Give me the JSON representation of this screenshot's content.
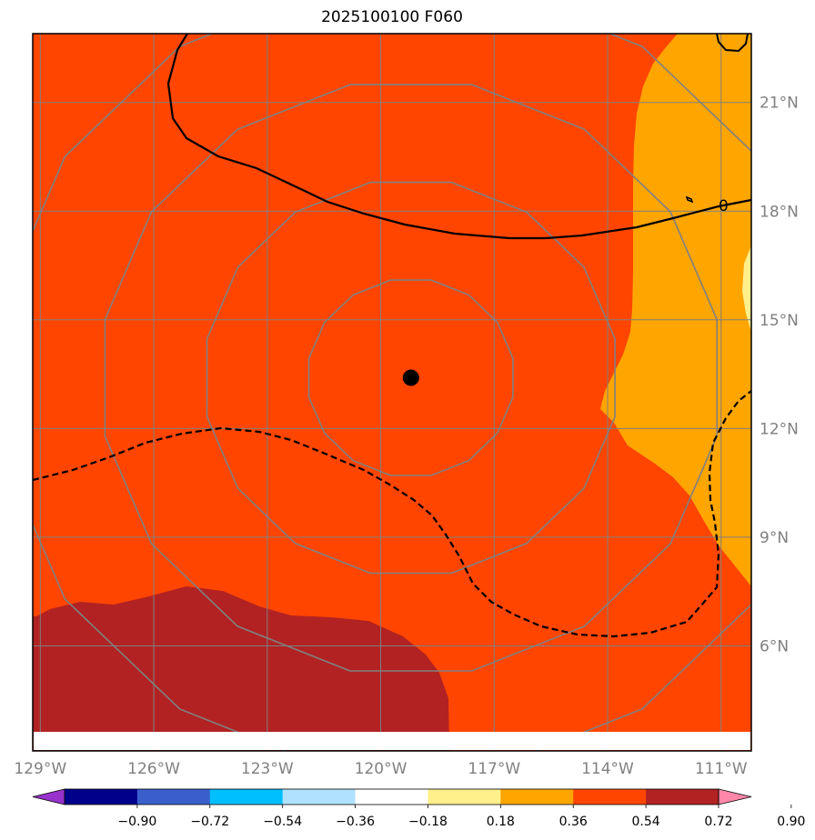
{
  "title": "2025100100 F060",
  "colors": {
    "base": "#ff4500",
    "upper_bin": "#b22222",
    "mid_bin": "#ffa500",
    "low_bin": "#fff08c",
    "grid": "#808080",
    "contour": "#000000"
  },
  "map": {
    "lon_range": [
      -129.2,
      -110.2
    ],
    "lat_range": [
      3.1,
      22.9
    ],
    "lon_ticks": [
      {
        "value": -129,
        "label": "129°W"
      },
      {
        "value": -126,
        "label": "126°W"
      },
      {
        "value": -123,
        "label": "123°W"
      },
      {
        "value": -120,
        "label": "120°W"
      },
      {
        "value": -117,
        "label": "117°W"
      },
      {
        "value": -114,
        "label": "114°W"
      },
      {
        "value": -111,
        "label": "111°W"
      }
    ],
    "lat_ticks": [
      {
        "value": 21,
        "label": "21°N"
      },
      {
        "value": 18,
        "label": "18°N"
      },
      {
        "value": 15,
        "label": "15°N"
      },
      {
        "value": 12,
        "label": "12°N"
      },
      {
        "value": 9,
        "label": "9°N"
      },
      {
        "value": 6,
        "label": "6°N"
      }
    ],
    "center": {
      "lon": -119.2,
      "lat": 13.4
    },
    "range_rings_deg": [
      2.75,
      5.5,
      8.25,
      11.0
    ],
    "contour_label": "0"
  },
  "colorbar": {
    "colors": [
      "#9932cc",
      "#00008b",
      "#3a5fcd",
      "#00bfff",
      "#b0e2ff",
      "#ffffff",
      "#fff08c",
      "#ffa500",
      "#ff4500",
      "#b22222",
      "#ff88aa"
    ],
    "tick_labels": [
      "−0.90",
      "−0.72",
      "−0.54",
      "−0.36",
      "−0.18",
      "0.18",
      "0.36",
      "0.54",
      "0.72",
      "0.90"
    ]
  }
}
